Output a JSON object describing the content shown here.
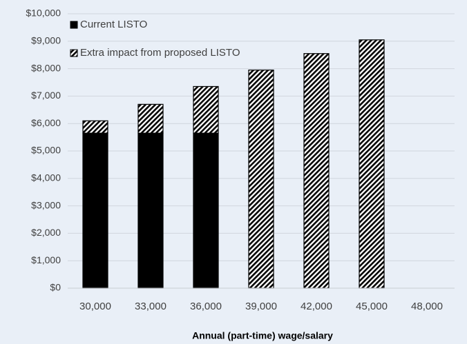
{
  "chart_data": {
    "type": "stacked_bar",
    "x_label": "Annual (part-time) wage/salary",
    "categories": [
      "30,000",
      "33,000",
      "36,000",
      "39,000",
      "42,000",
      "45,000",
      "48,000"
    ],
    "series": [
      {
        "name": "Current LISTO",
        "color": "#000000",
        "values": [
          5650,
          5650,
          5650,
          0,
          0,
          0,
          0
        ]
      },
      {
        "name": "Extra impact from proposed LISTO",
        "color": "#000000",
        "pattern": "hatch",
        "values": [
          450,
          1050,
          1700,
          7950,
          8550,
          9050,
          0
        ]
      }
    ],
    "ylim": [
      0,
      10000
    ],
    "yticks": [
      {
        "value": 0,
        "label": "$0"
      },
      {
        "value": 1000,
        "label": "$1,000"
      },
      {
        "value": 2000,
        "label": "$2,000"
      },
      {
        "value": 3000,
        "label": "$3,000"
      },
      {
        "value": 4000,
        "label": "$4,000"
      },
      {
        "value": 5000,
        "label": "$5,000"
      },
      {
        "value": 6000,
        "label": "$6,000"
      },
      {
        "value": 7000,
        "label": "$7,000"
      },
      {
        "value": 8000,
        "label": "$8,000"
      },
      {
        "value": 9000,
        "label": "$9,000"
      },
      {
        "value": 10000,
        "label": "$10,000"
      }
    ],
    "grid": true,
    "legend": "upper left"
  }
}
